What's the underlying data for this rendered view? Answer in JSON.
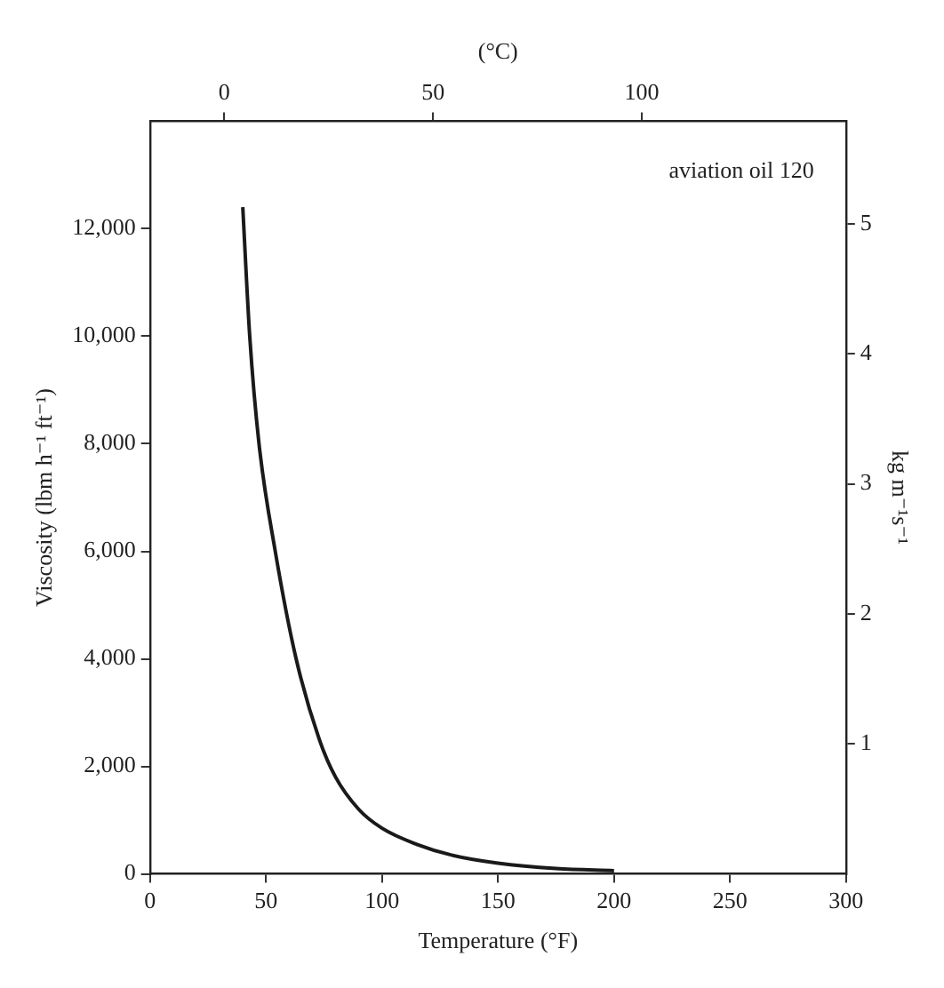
{
  "chart_data": {
    "type": "line",
    "xlabel": "Temperature (°F)",
    "ylabel": "Viscosity (lbm h⁻¹ ft⁻¹)",
    "y2label": "kg m⁻¹s⁻¹",
    "x2label": "(°C)",
    "x": [
      40,
      43,
      47,
      54,
      63,
      73,
      80,
      90,
      100,
      115,
      130,
      150,
      175,
      200
    ],
    "series": [
      {
        "color": "#1a1a1a",
        "values": [
          12400,
          10000,
          8000,
          6000,
          4000,
          2500,
          1800,
          1200,
          850,
          550,
          350,
          200,
          100,
          60
        ]
      }
    ],
    "xlim": [
      0,
      300
    ],
    "xticks": [
      0,
      50,
      100,
      150,
      200,
      250,
      300
    ],
    "ylim": [
      0,
      14000
    ],
    "yticks": [
      0,
      {
        "value": 2000,
        "label": "2,000"
      },
      {
        "value": 4000,
        "label": "4,000"
      },
      {
        "value": 6000,
        "label": "6,000"
      },
      {
        "value": 8000,
        "label": "8,000"
      },
      {
        "value": 10000,
        "label": "10,000"
      },
      {
        "value": 12000,
        "label": "12,000"
      }
    ],
    "y2lim": [
      0,
      5.79
    ],
    "y2ticks": [
      1,
      2,
      3,
      4,
      5
    ],
    "x2lim": [
      -17.8,
      148.9
    ],
    "x2ticks": [
      0,
      50,
      100
    ],
    "annotations": [
      "aviation oil 120"
    ],
    "grid": false,
    "legend": false,
    "marker": "none",
    "line_style": "solid"
  }
}
